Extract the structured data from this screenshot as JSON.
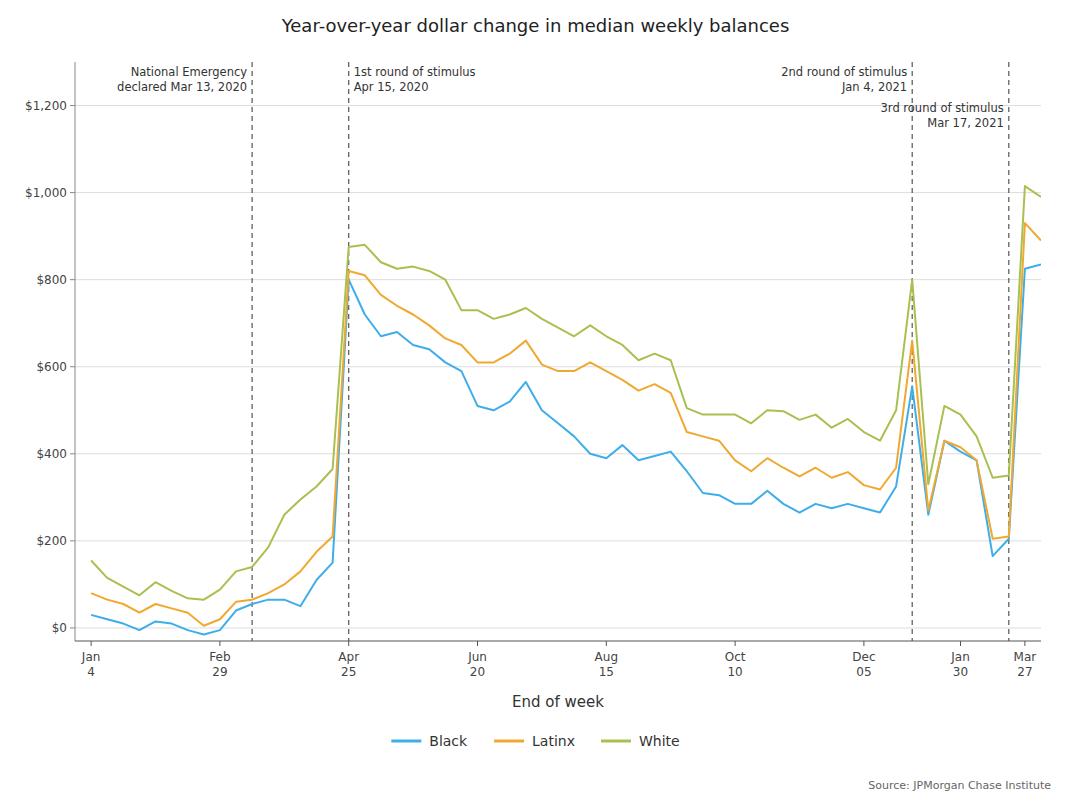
{
  "chart_data": {
    "type": "line",
    "title": "Year-over-year dollar change in median weekly balances",
    "xlabel": "End of week",
    "source": "Source: JPMorgan Chase Institute",
    "categories": [
      "Jan\n4",
      null,
      null,
      null,
      null,
      null,
      null,
      null,
      "Feb\n29",
      null,
      null,
      null,
      null,
      null,
      null,
      null,
      "Apr\n25",
      null,
      null,
      null,
      null,
      null,
      null,
      null,
      "Jun\n20",
      null,
      null,
      null,
      null,
      null,
      null,
      null,
      "Aug\n15",
      null,
      null,
      null,
      null,
      null,
      null,
      null,
      "Oct\n10",
      null,
      null,
      null,
      null,
      null,
      null,
      null,
      "Dec\n05",
      null,
      null,
      null,
      null,
      null,
      "Jan\n30",
      null,
      null,
      null,
      "Mar\n27",
      null
    ],
    "series": [
      {
        "name": "Black",
        "color": "#3daee9",
        "values": [
          30,
          20,
          10,
          -5,
          15,
          10,
          -5,
          -15,
          -5,
          40,
          55,
          65,
          65,
          50,
          110,
          150,
          800,
          720,
          670,
          680,
          650,
          640,
          610,
          590,
          510,
          500,
          520,
          565,
          500,
          470,
          440,
          400,
          390,
          420,
          385,
          395,
          405,
          360,
          310,
          305,
          285,
          285,
          315,
          285,
          265,
          285,
          275,
          285,
          275,
          265,
          325,
          555,
          260,
          430,
          405,
          385,
          165,
          205,
          825,
          835
        ]
      },
      {
        "name": "Latinx",
        "color": "#f0a830",
        "values": [
          80,
          65,
          55,
          35,
          55,
          45,
          35,
          5,
          20,
          60,
          65,
          80,
          100,
          130,
          175,
          210,
          820,
          810,
          765,
          740,
          720,
          695,
          665,
          650,
          610,
          610,
          630,
          660,
          605,
          590,
          590,
          610,
          590,
          570,
          545,
          560,
          540,
          450,
          440,
          430,
          385,
          360,
          390,
          368,
          348,
          368,
          345,
          358,
          328,
          318,
          368,
          660,
          270,
          430,
          415,
          385,
          205,
          210,
          930,
          890
        ]
      },
      {
        "name": "White",
        "color": "#a8c050",
        "values": [
          155,
          115,
          95,
          75,
          105,
          85,
          68,
          65,
          88,
          130,
          140,
          185,
          260,
          295,
          325,
          365,
          875,
          880,
          840,
          825,
          830,
          820,
          800,
          730,
          730,
          710,
          720,
          735,
          710,
          690,
          670,
          695,
          670,
          650,
          615,
          630,
          615,
          505,
          490,
          490,
          490,
          470,
          500,
          498,
          478,
          490,
          460,
          480,
          450,
          430,
          500,
          800,
          330,
          510,
          490,
          440,
          345,
          350,
          1015,
          990
        ]
      }
    ],
    "annotations": [
      {
        "text": "National Emergency\ndeclared Mar 13, 2020",
        "x": 10
      },
      {
        "text": "1st round of stimulus\nApr 15, 2020",
        "x": 16
      },
      {
        "text": "2nd round of stimulus\nJan 4, 2021",
        "x": 51
      },
      {
        "text": "3rd round of stimulus\nMar 17, 2021",
        "x": 57
      }
    ],
    "ylim": [
      -30,
      1300
    ],
    "yticks": [
      {
        "value": 0,
        "label": "$0"
      },
      {
        "value": 200,
        "label": "$200"
      },
      {
        "value": 400,
        "label": "$400"
      },
      {
        "value": 600,
        "label": "$600"
      },
      {
        "value": 800,
        "label": "$800"
      },
      {
        "value": 1000,
        "label": "$1,000"
      },
      {
        "value": 1200,
        "label": "$1,200"
      }
    ],
    "grid": true,
    "legend": "bottom"
  }
}
